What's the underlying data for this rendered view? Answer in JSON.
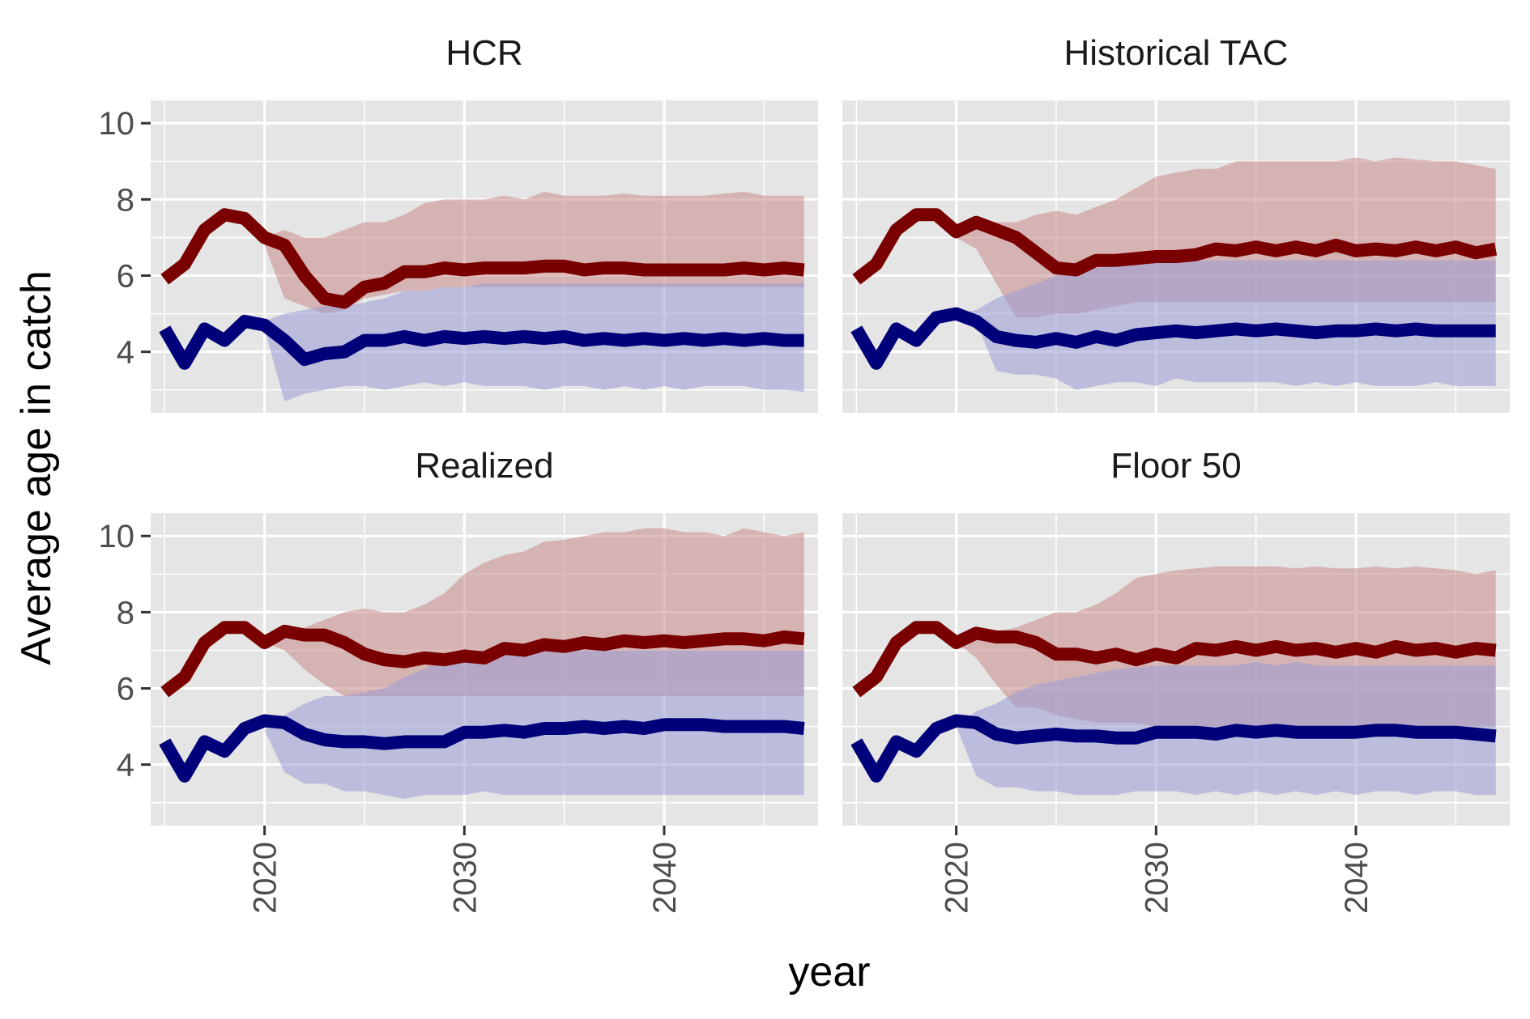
{
  "chart_data": {
    "type": "line",
    "xlabel": "year",
    "ylabel": "Average age in catch",
    "xlim": [
      2014.3,
      2047.7
    ],
    "ylim": [
      2.4,
      10.6
    ],
    "x_ticks": [
      2020,
      2030,
      2040
    ],
    "y_ticks": [
      4,
      6,
      8,
      10
    ],
    "grid": true,
    "legend": "none",
    "colors": {
      "panel_bg": "#e5e5e5",
      "grid": "#ffffff",
      "series_old": "#7a0000",
      "series_young": "#00007a",
      "band_old": "#c98a8a",
      "band_young": "#9a9ad6"
    },
    "panels": [
      {
        "title": "HCR",
        "years": [
          2015,
          2016,
          2017,
          2018,
          2019,
          2020,
          2021,
          2022,
          2023,
          2024,
          2025,
          2026,
          2027,
          2028,
          2029,
          2030,
          2031,
          2032,
          2033,
          2034,
          2035,
          2036,
          2037,
          2038,
          2039,
          2040,
          2041,
          2042,
          2043,
          2044,
          2045,
          2046,
          2047
        ],
        "red": [
          5.9,
          6.3,
          7.2,
          7.6,
          7.5,
          7.0,
          6.8,
          6.0,
          5.4,
          5.3,
          5.7,
          5.8,
          6.1,
          6.1,
          6.2,
          6.15,
          6.2,
          6.2,
          6.2,
          6.25,
          6.25,
          6.15,
          6.2,
          6.2,
          6.15,
          6.15,
          6.15,
          6.15,
          6.15,
          6.2,
          6.15,
          6.2,
          6.15
        ],
        "blue": [
          4.6,
          3.7,
          4.6,
          4.3,
          4.8,
          4.7,
          4.3,
          3.8,
          3.95,
          4.0,
          4.3,
          4.3,
          4.4,
          4.3,
          4.4,
          4.35,
          4.4,
          4.35,
          4.4,
          4.35,
          4.4,
          4.3,
          4.35,
          4.3,
          4.35,
          4.3,
          4.35,
          4.3,
          4.35,
          4.3,
          4.35,
          4.3,
          4.3
        ],
        "band_x": [
          2020,
          2021,
          2022,
          2023,
          2024,
          2025,
          2026,
          2027,
          2028,
          2029,
          2030,
          2031,
          2032,
          2033,
          2034,
          2035,
          2036,
          2037,
          2038,
          2039,
          2040,
          2041,
          2042,
          2043,
          2044,
          2045,
          2046,
          2047
        ],
        "red_lo": [
          6.8,
          5.4,
          5.2,
          5.0,
          5.1,
          5.4,
          5.5,
          5.6,
          5.6,
          5.7,
          5.7,
          5.7,
          5.7,
          5.7,
          5.7,
          5.7,
          5.7,
          5.7,
          5.7,
          5.7,
          5.7,
          5.7,
          5.7,
          5.7,
          5.7,
          5.7,
          5.7,
          5.7
        ],
        "red_hi": [
          7.0,
          7.2,
          7.0,
          7.0,
          7.2,
          7.4,
          7.4,
          7.6,
          7.9,
          8.0,
          8.0,
          8.0,
          8.1,
          8.0,
          8.2,
          8.1,
          8.1,
          8.1,
          8.15,
          8.1,
          8.1,
          8.1,
          8.1,
          8.15,
          8.2,
          8.1,
          8.1,
          8.1
        ],
        "blue_lo": [
          4.6,
          2.7,
          2.9,
          3.0,
          3.1,
          3.1,
          3.0,
          3.1,
          3.2,
          3.1,
          3.2,
          3.1,
          3.1,
          3.1,
          3.0,
          3.1,
          3.1,
          3.0,
          3.1,
          3.0,
          3.1,
          3.0,
          3.1,
          3.1,
          3.1,
          3.0,
          3.0,
          2.95
        ],
        "blue_hi": [
          4.8,
          5.0,
          5.1,
          5.2,
          5.2,
          5.3,
          5.4,
          5.6,
          5.6,
          5.7,
          5.7,
          5.8,
          5.8,
          5.8,
          5.8,
          5.8,
          5.8,
          5.8,
          5.8,
          5.8,
          5.8,
          5.8,
          5.8,
          5.8,
          5.8,
          5.8,
          5.8,
          5.8
        ]
      },
      {
        "title": "Historical TAC",
        "years": [
          2015,
          2016,
          2017,
          2018,
          2019,
          2020,
          2021,
          2022,
          2023,
          2024,
          2025,
          2026,
          2027,
          2028,
          2029,
          2030,
          2031,
          2032,
          2033,
          2034,
          2035,
          2036,
          2037,
          2038,
          2039,
          2040,
          2041,
          2042,
          2043,
          2044,
          2045,
          2046,
          2047
        ],
        "red": [
          5.9,
          6.3,
          7.2,
          7.6,
          7.6,
          7.15,
          7.4,
          7.2,
          7.0,
          6.6,
          6.2,
          6.15,
          6.4,
          6.4,
          6.45,
          6.5,
          6.5,
          6.55,
          6.7,
          6.65,
          6.75,
          6.65,
          6.75,
          6.65,
          6.8,
          6.65,
          6.7,
          6.65,
          6.75,
          6.65,
          6.75,
          6.6,
          6.7
        ],
        "blue": [
          4.6,
          3.7,
          4.6,
          4.3,
          4.9,
          5.0,
          4.8,
          4.4,
          4.3,
          4.25,
          4.35,
          4.25,
          4.4,
          4.3,
          4.45,
          4.5,
          4.55,
          4.5,
          4.55,
          4.6,
          4.55,
          4.6,
          4.55,
          4.5,
          4.55,
          4.55,
          4.6,
          4.55,
          4.6,
          4.55,
          4.55,
          4.55,
          4.55
        ],
        "band_x": [
          2020,
          2021,
          2022,
          2023,
          2024,
          2025,
          2026,
          2027,
          2028,
          2029,
          2030,
          2031,
          2032,
          2033,
          2034,
          2035,
          2036,
          2037,
          2038,
          2039,
          2040,
          2041,
          2042,
          2043,
          2044,
          2045,
          2046,
          2047
        ],
        "red_lo": [
          7.0,
          6.7,
          5.8,
          4.9,
          4.9,
          5.0,
          5.0,
          5.1,
          5.2,
          5.3,
          5.3,
          5.3,
          5.3,
          5.3,
          5.3,
          5.3,
          5.3,
          5.3,
          5.3,
          5.3,
          5.3,
          5.3,
          5.3,
          5.3,
          5.3,
          5.3,
          5.3,
          5.3
        ],
        "red_hi": [
          7.3,
          7.5,
          7.4,
          7.4,
          7.6,
          7.7,
          7.6,
          7.8,
          8.0,
          8.3,
          8.6,
          8.7,
          8.8,
          8.8,
          9.0,
          9.0,
          9.0,
          9.0,
          9.0,
          9.0,
          9.1,
          9.0,
          9.1,
          9.05,
          9.0,
          9.0,
          8.9,
          8.8
        ],
        "blue_lo": [
          5.0,
          4.8,
          3.5,
          3.4,
          3.4,
          3.3,
          3.0,
          3.1,
          3.2,
          3.2,
          3.1,
          3.3,
          3.2,
          3.2,
          3.2,
          3.2,
          3.2,
          3.1,
          3.2,
          3.1,
          3.2,
          3.1,
          3.1,
          3.1,
          3.2,
          3.1,
          3.1,
          3.1
        ],
        "blue_hi": [
          5.0,
          5.1,
          5.4,
          5.6,
          5.8,
          6.0,
          6.1,
          6.2,
          6.3,
          6.4,
          6.4,
          6.4,
          6.4,
          6.4,
          6.4,
          6.4,
          6.4,
          6.4,
          6.4,
          6.4,
          6.4,
          6.4,
          6.4,
          6.4,
          6.4,
          6.4,
          6.4,
          6.4
        ]
      },
      {
        "title": "Realized",
        "years": [
          2015,
          2016,
          2017,
          2018,
          2019,
          2020,
          2021,
          2022,
          2023,
          2024,
          2025,
          2026,
          2027,
          2028,
          2029,
          2030,
          2031,
          2032,
          2033,
          2034,
          2035,
          2036,
          2037,
          2038,
          2039,
          2040,
          2041,
          2042,
          2043,
          2044,
          2045,
          2046,
          2047
        ],
        "red": [
          5.9,
          6.3,
          7.2,
          7.6,
          7.6,
          7.2,
          7.5,
          7.4,
          7.4,
          7.2,
          6.9,
          6.75,
          6.7,
          6.8,
          6.75,
          6.85,
          6.8,
          7.05,
          7.0,
          7.15,
          7.1,
          7.2,
          7.15,
          7.25,
          7.2,
          7.25,
          7.2,
          7.25,
          7.3,
          7.3,
          7.25,
          7.35,
          7.3
        ],
        "blue": [
          4.6,
          3.7,
          4.6,
          4.35,
          4.95,
          5.15,
          5.1,
          4.8,
          4.65,
          4.6,
          4.6,
          4.55,
          4.6,
          4.6,
          4.6,
          4.85,
          4.85,
          4.9,
          4.85,
          4.95,
          4.95,
          5.0,
          4.95,
          5.0,
          4.95,
          5.05,
          5.05,
          5.05,
          5.0,
          5.0,
          5.0,
          5.0,
          4.95
        ],
        "band_x": [
          2020,
          2021,
          2022,
          2023,
          2024,
          2025,
          2026,
          2027,
          2028,
          2029,
          2030,
          2031,
          2032,
          2033,
          2034,
          2035,
          2036,
          2037,
          2038,
          2039,
          2040,
          2041,
          2042,
          2043,
          2044,
          2045,
          2046,
          2047
        ],
        "red_lo": [
          7.2,
          7.0,
          6.5,
          6.1,
          5.8,
          5.8,
          5.8,
          5.8,
          5.8,
          5.8,
          5.8,
          5.8,
          5.8,
          5.8,
          5.8,
          5.8,
          5.8,
          5.8,
          5.8,
          5.8,
          5.8,
          5.8,
          5.8,
          5.8,
          5.8,
          5.8,
          5.8,
          5.8
        ],
        "red_hi": [
          7.3,
          7.5,
          7.6,
          7.8,
          8.0,
          8.1,
          8.0,
          8.0,
          8.2,
          8.5,
          9.0,
          9.3,
          9.5,
          9.6,
          9.85,
          9.9,
          10.0,
          10.1,
          10.1,
          10.2,
          10.2,
          10.1,
          10.1,
          10.0,
          10.2,
          10.1,
          10.0,
          10.1
        ],
        "blue_lo": [
          4.9,
          3.8,
          3.5,
          3.5,
          3.3,
          3.3,
          3.2,
          3.1,
          3.2,
          3.2,
          3.2,
          3.3,
          3.2,
          3.2,
          3.2,
          3.2,
          3.2,
          3.2,
          3.2,
          3.2,
          3.2,
          3.2,
          3.2,
          3.2,
          3.2,
          3.2,
          3.2,
          3.2
        ],
        "blue_hi": [
          4.9,
          5.3,
          5.6,
          5.8,
          5.8,
          5.9,
          6.0,
          6.3,
          6.5,
          6.8,
          7.0,
          7.0,
          7.0,
          7.0,
          7.0,
          7.0,
          7.0,
          7.0,
          7.0,
          7.0,
          7.0,
          7.0,
          7.0,
          7.0,
          7.0,
          7.0,
          7.0,
          7.0
        ]
      },
      {
        "title": "Floor 50",
        "years": [
          2015,
          2016,
          2017,
          2018,
          2019,
          2020,
          2021,
          2022,
          2023,
          2024,
          2025,
          2026,
          2027,
          2028,
          2029,
          2030,
          2031,
          2032,
          2033,
          2034,
          2035,
          2036,
          2037,
          2038,
          2039,
          2040,
          2041,
          2042,
          2043,
          2044,
          2045,
          2046,
          2047
        ],
        "red": [
          5.9,
          6.3,
          7.2,
          7.6,
          7.6,
          7.2,
          7.45,
          7.35,
          7.35,
          7.2,
          6.9,
          6.9,
          6.8,
          6.9,
          6.75,
          6.9,
          6.8,
          7.05,
          7.0,
          7.1,
          7.0,
          7.1,
          7.0,
          7.05,
          6.95,
          7.05,
          6.95,
          7.1,
          7.0,
          7.05,
          6.95,
          7.05,
          7.0
        ],
        "blue": [
          4.6,
          3.7,
          4.6,
          4.35,
          4.95,
          5.15,
          5.1,
          4.8,
          4.7,
          4.75,
          4.8,
          4.75,
          4.75,
          4.7,
          4.7,
          4.85,
          4.85,
          4.85,
          4.8,
          4.9,
          4.85,
          4.9,
          4.85,
          4.85,
          4.85,
          4.85,
          4.9,
          4.9,
          4.85,
          4.85,
          4.85,
          4.8,
          4.75
        ],
        "band_x": [
          2020,
          2021,
          2022,
          2023,
          2024,
          2025,
          2026,
          2027,
          2028,
          2029,
          2030,
          2031,
          2032,
          2033,
          2034,
          2035,
          2036,
          2037,
          2038,
          2039,
          2040,
          2041,
          2042,
          2043,
          2044,
          2045,
          2046,
          2047
        ],
        "red_lo": [
          7.2,
          6.8,
          6.1,
          5.5,
          5.5,
          5.3,
          5.2,
          5.1,
          5.1,
          5.1,
          5.0,
          5.0,
          5.0,
          5.0,
          5.0,
          5.0,
          5.0,
          5.0,
          5.0,
          5.0,
          5.0,
          5.0,
          5.0,
          5.0,
          5.0,
          5.0,
          5.0,
          5.0
        ],
        "red_hi": [
          7.3,
          7.4,
          7.5,
          7.6,
          7.8,
          8.0,
          8.0,
          8.2,
          8.5,
          8.9,
          9.0,
          9.1,
          9.15,
          9.2,
          9.2,
          9.2,
          9.2,
          9.15,
          9.2,
          9.15,
          9.15,
          9.2,
          9.15,
          9.2,
          9.15,
          9.1,
          9.0,
          9.1
        ],
        "blue_lo": [
          5.0,
          3.7,
          3.4,
          3.4,
          3.3,
          3.3,
          3.2,
          3.2,
          3.2,
          3.3,
          3.3,
          3.3,
          3.2,
          3.3,
          3.2,
          3.3,
          3.2,
          3.3,
          3.2,
          3.3,
          3.2,
          3.3,
          3.3,
          3.2,
          3.3,
          3.3,
          3.2,
          3.2
        ],
        "blue_hi": [
          5.0,
          5.4,
          5.6,
          5.9,
          6.1,
          6.2,
          6.3,
          6.4,
          6.5,
          6.55,
          6.6,
          6.6,
          6.6,
          6.6,
          6.6,
          6.7,
          6.6,
          6.7,
          6.6,
          6.6,
          6.6,
          6.6,
          6.6,
          6.6,
          6.6,
          6.6,
          6.6,
          6.6
        ]
      }
    ]
  }
}
